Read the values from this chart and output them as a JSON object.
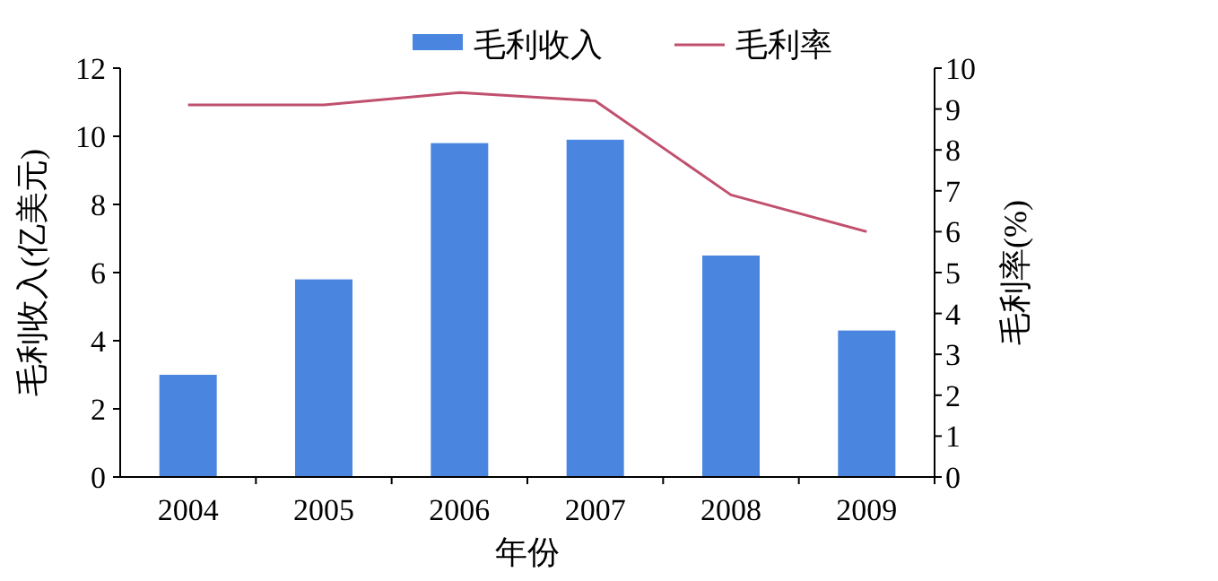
{
  "chart_data": {
    "type": "bar",
    "categories": [
      "2004",
      "2005",
      "2006",
      "2007",
      "2008",
      "2009"
    ],
    "series": [
      {
        "name": "毛利收入",
        "color": "#4a86e0",
        "values": [
          3.0,
          5.8,
          9.8,
          9.9,
          6.5,
          4.3
        ]
      },
      {
        "name": "毛利率",
        "type": "line",
        "axis": "y2",
        "color": "#c0506e",
        "values": [
          9.1,
          9.1,
          9.4,
          9.2,
          6.9,
          6.0
        ]
      }
    ],
    "xlabel": "年份",
    "ylabel": "毛利收入(亿美元)",
    "y2label": "毛利率(%)",
    "ylim": [
      0,
      12
    ],
    "yticks": [
      0,
      2,
      4,
      6,
      8,
      10,
      12
    ],
    "y2lim": [
      0,
      10
    ],
    "y2ticks": [
      0,
      1,
      2,
      3,
      4,
      5,
      6,
      7,
      8,
      9,
      10
    ],
    "legend": "top",
    "grid": false,
    "marker": "none",
    "line_style": "solid"
  }
}
